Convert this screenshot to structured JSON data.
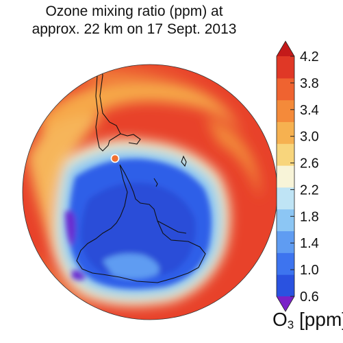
{
  "title": {
    "line1": "Ozone mixing ratio (ppm) at",
    "line2": "approx. 22 km on 17 Sept. 2013"
  },
  "colorbar": {
    "ticks": [
      "4.2",
      "3.8",
      "3.4",
      "3.0",
      "2.6",
      "2.2",
      "1.8",
      "1.4",
      "1.0",
      "0.6"
    ],
    "tick_values": [
      4.2,
      3.8,
      3.4,
      3.0,
      2.6,
      2.2,
      1.8,
      1.4,
      1.0,
      0.6
    ],
    "colors": [
      "#7a22c8",
      "#2a52e0",
      "#3d74ef",
      "#5f9cf2",
      "#8cc6f4",
      "#bfe4f5",
      "#f8f4d8",
      "#f8d57c",
      "#f6b150",
      "#f48a3a",
      "#ef6330",
      "#e03826",
      "#c41a1a"
    ],
    "units_symbol": "O",
    "units_sub": "3",
    "units_rest": " [ppm]"
  },
  "map": {
    "projection": "orthographic, south polar",
    "colors": {
      "hole": "#2a52e0",
      "hole_deep": "#6a2ad0",
      "collar": "#f2f2e8",
      "high": "#e03826",
      "mid": "#f48a3a"
    },
    "marker": {
      "color": "#f07030"
    }
  }
}
